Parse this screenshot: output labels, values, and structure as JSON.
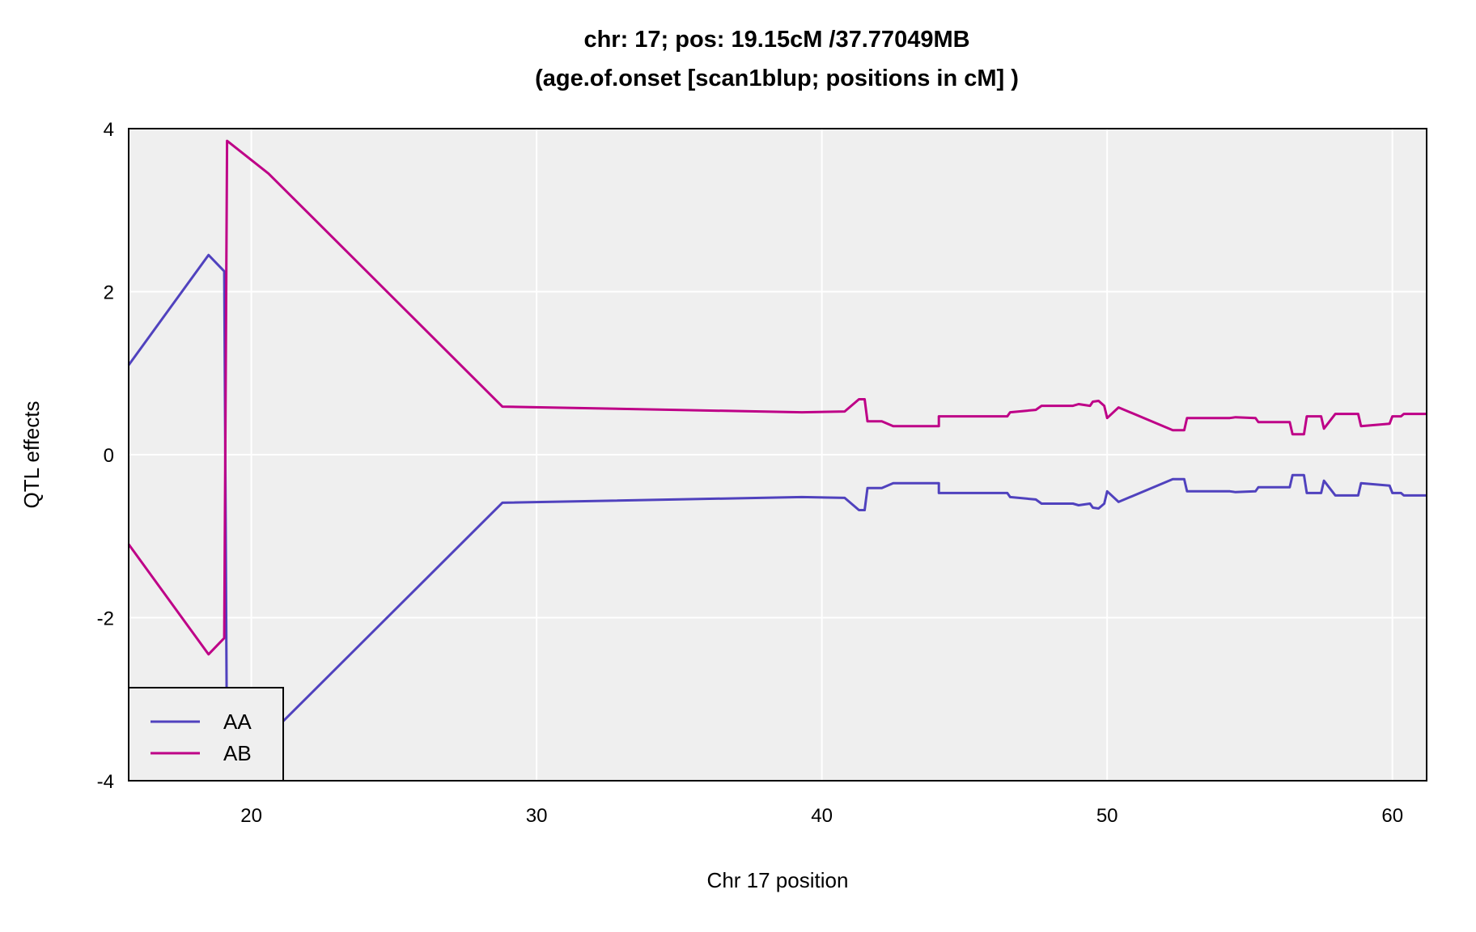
{
  "chart_data": {
    "type": "line",
    "title": "chr: 17; pos: 19.15cM /37.77049MB",
    "subtitle": "(age.of.onset [scan1blup; positions in cM] )",
    "xlabel": "Chr 17 position",
    "ylabel": "QTL effects",
    "xlim": [
      15.7,
      61.2
    ],
    "ylim": [
      -4,
      4
    ],
    "x_ticks": [
      20,
      30,
      40,
      50,
      60
    ],
    "y_ticks": [
      -4,
      -2,
      0,
      2,
      4
    ],
    "x_tick_labels": [
      "20",
      "30",
      "40",
      "50",
      "60"
    ],
    "y_tick_labels": [
      "-4",
      "-2",
      "0",
      "2",
      "4"
    ],
    "grid": true,
    "legend_position": "bottom-left",
    "series": [
      {
        "name": "AA",
        "color": "#5042be",
        "points": [
          [
            15.7,
            1.1
          ],
          [
            18.5,
            2.45
          ],
          [
            19.05,
            2.25
          ],
          [
            19.15,
            -3.85
          ],
          [
            20.6,
            -3.45
          ],
          [
            28.8,
            -0.59
          ],
          [
            39.3,
            -0.52
          ],
          [
            40.8,
            -0.53
          ],
          [
            41.3,
            -0.68
          ],
          [
            41.5,
            -0.68
          ],
          [
            41.6,
            -0.41
          ],
          [
            42.1,
            -0.41
          ],
          [
            42.5,
            -0.35
          ],
          [
            44.1,
            -0.35
          ],
          [
            44.1,
            -0.47
          ],
          [
            46.5,
            -0.47
          ],
          [
            46.6,
            -0.52
          ],
          [
            47.5,
            -0.55
          ],
          [
            47.7,
            -0.6
          ],
          [
            48.8,
            -0.6
          ],
          [
            49.0,
            -0.62
          ],
          [
            49.4,
            -0.6
          ],
          [
            49.5,
            -0.65
          ],
          [
            49.7,
            -0.66
          ],
          [
            49.9,
            -0.6
          ],
          [
            50.0,
            -0.45
          ],
          [
            50.4,
            -0.58
          ],
          [
            52.3,
            -0.3
          ],
          [
            52.7,
            -0.3
          ],
          [
            52.8,
            -0.45
          ],
          [
            54.3,
            -0.45
          ],
          [
            54.5,
            -0.46
          ],
          [
            55.2,
            -0.45
          ],
          [
            55.3,
            -0.4
          ],
          [
            56.4,
            -0.4
          ],
          [
            56.5,
            -0.25
          ],
          [
            56.9,
            -0.25
          ],
          [
            57.0,
            -0.47
          ],
          [
            57.5,
            -0.47
          ],
          [
            57.6,
            -0.32
          ],
          [
            58.0,
            -0.5
          ],
          [
            58.8,
            -0.5
          ],
          [
            58.9,
            -0.35
          ],
          [
            59.9,
            -0.38
          ],
          [
            60.0,
            -0.47
          ],
          [
            60.3,
            -0.47
          ],
          [
            60.4,
            -0.5
          ],
          [
            61.2,
            -0.5
          ]
        ]
      },
      {
        "name": "AB",
        "color": "#be0087",
        "points": [
          [
            15.7,
            -1.1
          ],
          [
            18.5,
            -2.45
          ],
          [
            19.05,
            -2.25
          ],
          [
            19.15,
            3.85
          ],
          [
            20.6,
            3.45
          ],
          [
            28.8,
            0.59
          ],
          [
            39.3,
            0.52
          ],
          [
            40.8,
            0.53
          ],
          [
            41.3,
            0.68
          ],
          [
            41.5,
            0.68
          ],
          [
            41.6,
            0.41
          ],
          [
            42.1,
            0.41
          ],
          [
            42.5,
            0.35
          ],
          [
            44.1,
            0.35
          ],
          [
            44.1,
            0.47
          ],
          [
            46.5,
            0.47
          ],
          [
            46.6,
            0.52
          ],
          [
            47.5,
            0.55
          ],
          [
            47.7,
            0.6
          ],
          [
            48.8,
            0.6
          ],
          [
            49.0,
            0.62
          ],
          [
            49.4,
            0.6
          ],
          [
            49.5,
            0.65
          ],
          [
            49.7,
            0.66
          ],
          [
            49.9,
            0.6
          ],
          [
            50.0,
            0.45
          ],
          [
            50.4,
            0.58
          ],
          [
            52.3,
            0.3
          ],
          [
            52.7,
            0.3
          ],
          [
            52.8,
            0.45
          ],
          [
            54.3,
            0.45
          ],
          [
            54.5,
            0.46
          ],
          [
            55.2,
            0.45
          ],
          [
            55.3,
            0.4
          ],
          [
            56.4,
            0.4
          ],
          [
            56.5,
            0.25
          ],
          [
            56.9,
            0.25
          ],
          [
            57.0,
            0.47
          ],
          [
            57.5,
            0.47
          ],
          [
            57.6,
            0.32
          ],
          [
            58.0,
            0.5
          ],
          [
            58.8,
            0.5
          ],
          [
            58.9,
            0.35
          ],
          [
            59.9,
            0.38
          ],
          [
            60.0,
            0.47
          ],
          [
            60.3,
            0.47
          ],
          [
            60.4,
            0.5
          ],
          [
            61.2,
            0.5
          ]
        ]
      }
    ]
  }
}
